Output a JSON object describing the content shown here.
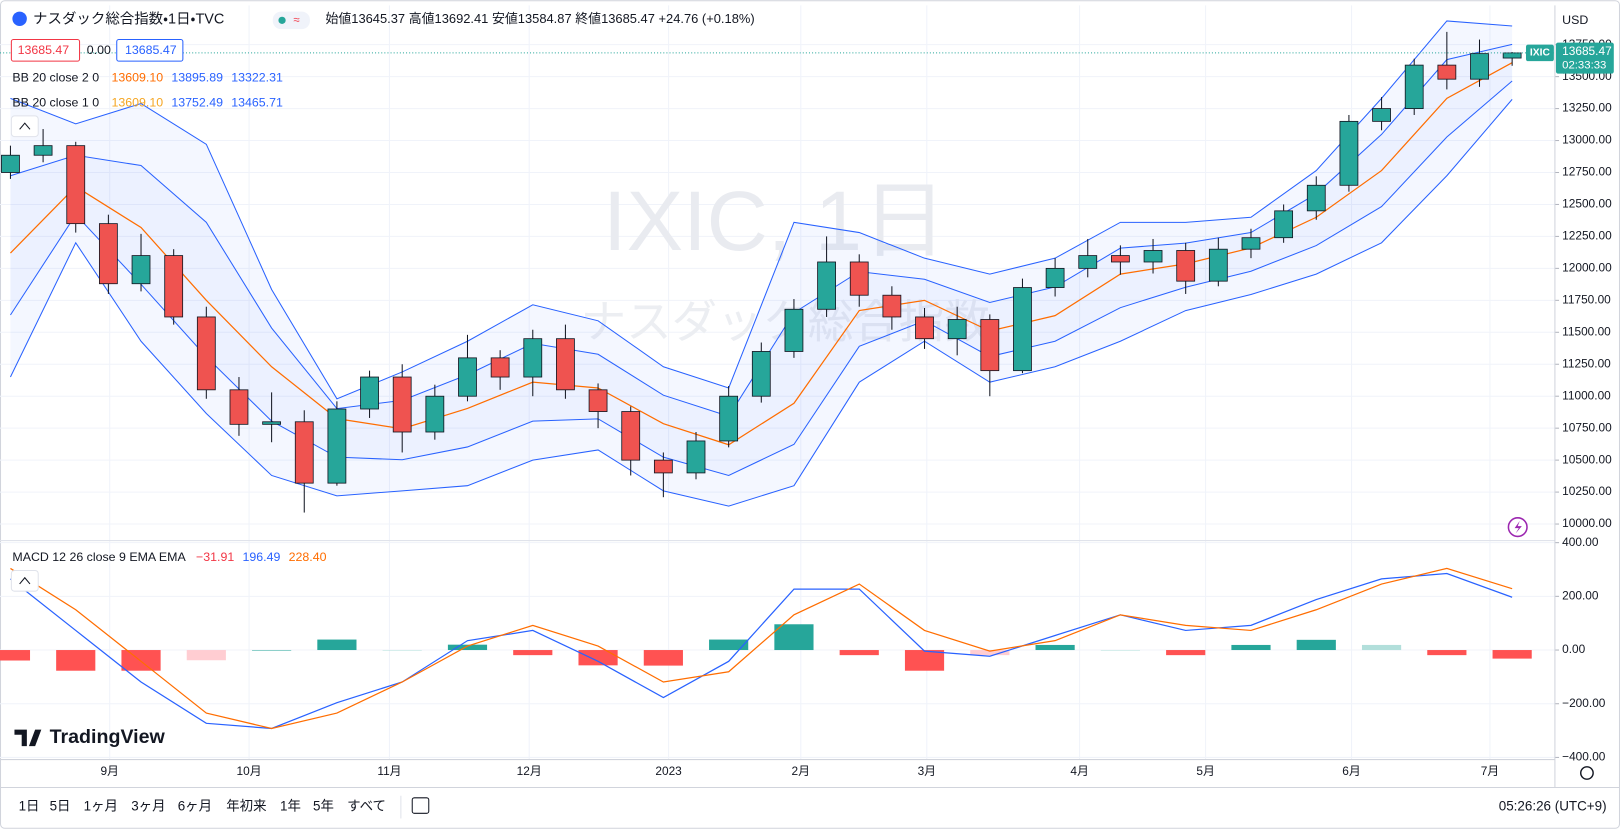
{
  "chart_data": [
    {
      "type": "candlestick",
      "title": "ナスダック総合指数・1日・TVC",
      "ohlc_readout": [
        {
          "label": "始値",
          "value": "13645.37"
        },
        {
          "label": "高値",
          "value": "13692.41"
        },
        {
          "label": "安値",
          "value": "13584.87"
        },
        {
          "label": "終値",
          "value": "13685.47"
        }
      ],
      "change": "+24.76 (+0.18%)",
      "legend": [
        {
          "values": [
            "13685.47",
            "0.00",
            "13685.47"
          ]
        },
        {
          "name": "BB 20 close 2 0",
          "values": [
            "13609.10",
            "13895.89",
            "13322.31"
          ]
        },
        {
          "name": "BB 20 close 1 0",
          "values": [
            "13609.10",
            "13752.49",
            "13465.71"
          ]
        }
      ],
      "up_color": "#26a69a",
      "down_color": "#ef5350",
      "x": [
        0,
        1,
        2,
        3,
        4,
        5,
        6,
        7,
        8,
        9,
        10,
        11,
        12,
        13,
        14,
        15,
        16,
        17,
        18,
        19,
        20,
        21,
        22,
        23,
        24,
        25,
        26,
        27,
        28,
        29,
        30,
        31,
        32,
        33,
        34,
        35,
        36,
        37,
        38,
        39,
        40,
        41,
        42,
        43,
        44,
        45,
        46
      ],
      "open": [
        12750,
        12885,
        12960,
        12350,
        11880,
        12100,
        11620,
        11050,
        10780,
        10800,
        10320,
        10900,
        11150,
        10720,
        11000,
        11300,
        11150,
        11450,
        11050,
        10880,
        10500,
        10400,
        10650,
        11000,
        11350,
        11680,
        12050,
        11790,
        11620,
        11450,
        11600,
        11200,
        11850,
        12000,
        12100,
        12050,
        12140,
        11900,
        12150,
        12240,
        12450,
        12650,
        13150,
        13250,
        13590,
        13480,
        13645.37
      ],
      "high": [
        12960,
        13090,
        12990,
        12420,
        12270,
        12150,
        11700,
        11150,
        11030,
        10890,
        10960,
        11200,
        11250,
        11090,
        11480,
        11360,
        11520,
        11560,
        11100,
        10920,
        10560,
        10720,
        11080,
        11420,
        11760,
        12250,
        12110,
        11860,
        11690,
        11700,
        11640,
        11920,
        12080,
        12230,
        12180,
        12230,
        12200,
        12240,
        12310,
        12500,
        12720,
        13200,
        13340,
        13640,
        13850,
        13790,
        13692.41
      ],
      "low": [
        12700,
        12830,
        12280,
        11800,
        11820,
        11560,
        10980,
        10690,
        10640,
        10090,
        10300,
        10830,
        10560,
        10660,
        10960,
        11050,
        11000,
        10980,
        10750,
        10380,
        10210,
        10350,
        10600,
        10950,
        11300,
        11620,
        11700,
        11520,
        11370,
        11320,
        11000,
        11180,
        11780,
        11930,
        11950,
        11960,
        11800,
        11860,
        12080,
        12200,
        12380,
        12600,
        13080,
        13200,
        13400,
        13420,
        13584.87
      ],
      "close": [
        12885,
        12960,
        12350,
        11880,
        12100,
        11620,
        11050,
        10780,
        10800,
        10320,
        10900,
        11150,
        10720,
        11000,
        11300,
        11150,
        11450,
        11050,
        10880,
        10500,
        10400,
        10650,
        11000,
        11350,
        11680,
        12050,
        11790,
        11620,
        11450,
        11600,
        11200,
        11850,
        12000,
        12100,
        12050,
        12140,
        11900,
        12150,
        12240,
        12450,
        12650,
        13150,
        13250,
        13590,
        13480,
        13680,
        13685.47
      ],
      "bands": {
        "x": [
          0,
          2,
          4,
          6,
          8,
          10,
          12,
          14,
          16,
          18,
          20,
          22,
          24,
          26,
          28,
          30,
          32,
          34,
          36,
          38,
          40,
          42,
          44,
          46
        ],
        "band_color": "#2962ff",
        "middle_color": "#ff6d00",
        "middle": [
          12120,
          12640,
          12320,
          11750,
          11230,
          10825,
          10745,
          10905,
          11110,
          11065,
          10785,
          10620,
          10945,
          11670,
          11750,
          11510,
          11630,
          11955,
          12035,
          12160,
          12400,
          12765,
          13330,
          13609.1
        ],
        "upper2": [
          13330,
          13130,
          13290,
          12970,
          11835,
          10980,
          11190,
          11430,
          11715,
          11590,
          11230,
          11065,
          12360,
          12280,
          12080,
          11955,
          12080,
          12360,
          12360,
          12400,
          12765,
          13330,
          13935,
          13895.89
        ],
        "lower2": [
          11150,
          12200,
          11430,
          10865,
          10380,
          10220,
          10260,
          10300,
          10500,
          10580,
          10260,
          10140,
          10300,
          11110,
          11430,
          11110,
          11230,
          11430,
          11670,
          11795,
          11955,
          12200,
          12725,
          13322.31
        ],
        "upper1": [
          12725,
          12885,
          12805,
          12360,
          11533,
          10903,
          10968,
          11168,
          11413,
          11328,
          11008,
          10843,
          11653,
          11975,
          11915,
          11733,
          11855,
          12158,
          12198,
          12280,
          12583,
          13048,
          13633,
          13752.49
        ],
        "lower1": [
          11635,
          12420,
          11875,
          11308,
          10805,
          10523,
          10503,
          10603,
          10805,
          10823,
          10523,
          10380,
          10623,
          11390,
          11590,
          11310,
          11430,
          11693,
          11853,
          11978,
          12178,
          12483,
          13028,
          13465.71
        ]
      },
      "xlim": [
        -0.32,
        47.31
      ],
      "xticks": [
        {
          "value": 3.04,
          "label": "9月"
        },
        {
          "value": 7.31,
          "label": "10月"
        },
        {
          "value": 11.61,
          "label": "11月"
        },
        {
          "value": 15.89,
          "label": "12月"
        },
        {
          "value": 20.16,
          "label": "2023"
        },
        {
          "value": 24.21,
          "label": "2月"
        },
        {
          "value": 28.07,
          "label": "3月"
        },
        {
          "value": 32.75,
          "label": "4月"
        },
        {
          "value": 36.61,
          "label": "5月"
        },
        {
          "value": 41.08,
          "label": "6月"
        },
        {
          "value": 45.32,
          "label": "7月"
        }
      ],
      "ylim": [
        9879,
        14017
      ],
      "yticks": [
        {
          "value": 10000,
          "label": "10000.00"
        },
        {
          "value": 10250,
          "label": "10250.00"
        },
        {
          "value": 10500,
          "label": "10500.00"
        },
        {
          "value": 10750,
          "label": "10750.00"
        },
        {
          "value": 11000,
          "label": "11000.00"
        },
        {
          "value": 11250,
          "label": "11250.00"
        },
        {
          "value": 11500,
          "label": "11500.00"
        },
        {
          "value": 11750,
          "label": "11750.00"
        },
        {
          "value": 12000,
          "label": "12000.00"
        },
        {
          "value": 12250,
          "label": "12250.00"
        },
        {
          "value": 12500,
          "label": "12500.00"
        },
        {
          "value": 12750,
          "label": "12750.00"
        },
        {
          "value": 13000,
          "label": "13000.00"
        },
        {
          "value": 13250,
          "label": "13250.00"
        },
        {
          "value": 13500,
          "label": "13500.00"
        },
        {
          "value": 13750,
          "label": "13750.00"
        }
      ],
      "grid": true
    },
    {
      "type": "macd",
      "legend": {
        "name": "MACD 12 26 close 9 EMA EMA",
        "values": [
          "−31.91",
          "196.49",
          "228.40"
        ]
      },
      "macd_color": "#2962ff",
      "signal_color": "#ff6d00",
      "hist_colors": {
        "up_rising": "#26a69a",
        "up_falling": "#b2dfdb",
        "down_falling": "#ff5252",
        "down_rising": "#ffcdd2"
      },
      "x": [
        0,
        2,
        4,
        6,
        8,
        10,
        12,
        14,
        16,
        18,
        20,
        22,
        24,
        26,
        28,
        30,
        32,
        34,
        36,
        38,
        40,
        42,
        44,
        46
      ],
      "macd": [
        265,
        73,
        -119,
        -273,
        -292,
        -196,
        -119,
        35,
        73,
        -42,
        -177,
        -42,
        227,
        227,
        -4,
        -23,
        54,
        131,
        73,
        92,
        188,
        265,
        285,
        196.49
      ],
      "signal": [
        304,
        150,
        -42,
        -235,
        -292,
        -235,
        -119,
        15,
        92,
        15,
        -119,
        -81,
        131,
        246,
        73,
        -4,
        35,
        131,
        92,
        73,
        150,
        246,
        304,
        228.4
      ],
      "histogram": [
        -39,
        -77,
        -77,
        -38,
        0,
        39,
        0,
        20,
        -19,
        -57,
        -58,
        39,
        96,
        -19,
        -77,
        -19,
        19,
        0,
        -19,
        19,
        38,
        19,
        -19,
        -31.91
      ],
      "ylim": [
        -408,
        404
      ],
      "yticks": [
        {
          "value": -400,
          "label": "−400.00"
        },
        {
          "value": -200,
          "label": "−200.00"
        },
        {
          "value": 0,
          "label": "0.00"
        },
        {
          "value": 200,
          "label": "200.00"
        },
        {
          "value": 400,
          "label": "400.00"
        }
      ],
      "grid": true
    }
  ],
  "ui": {
    "currency": "USD",
    "symbol_tag": "IXIC",
    "price_tag": "13685.47",
    "countdown": "02:33:33",
    "watermark": [
      "IXIC, 1日",
      "ナスダック総合指数"
    ],
    "logo": "TradingView",
    "ranges": [
      "1日",
      "5日",
      "1ヶ月",
      "3ヶ月",
      "6ヶ月",
      "年初来",
      "1年",
      "5年",
      "すべて"
    ],
    "clock": "05:26:26 (UTC+9)"
  }
}
